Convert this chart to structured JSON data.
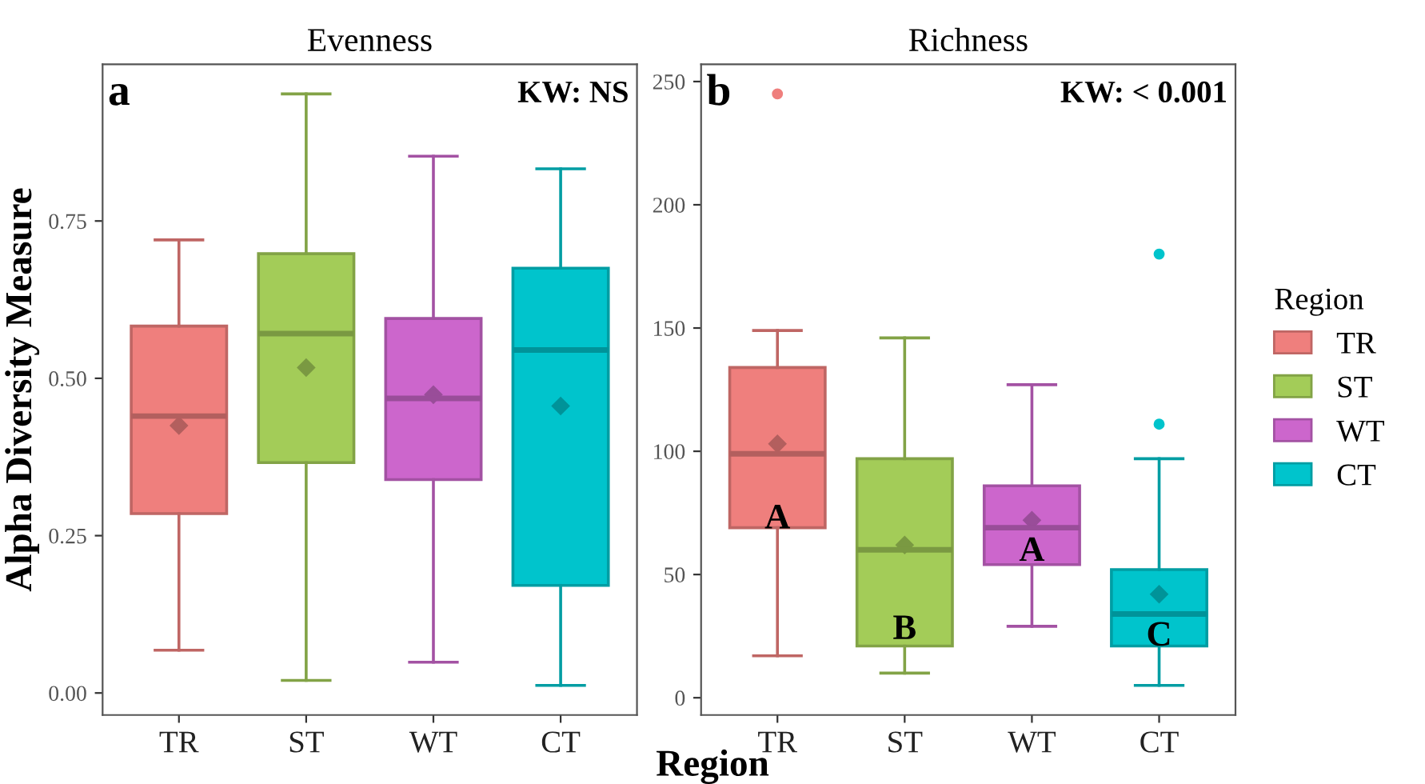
{
  "chart_data": [
    {
      "type": "box",
      "title": "Evenness",
      "ylabel": "Alpha Diversity Measure",
      "xlabel": "Region",
      "categories": [
        "TR",
        "ST",
        "WT",
        "CT"
      ],
      "series": [
        {
          "color": "#ef7f7d",
          "boxes": [
            {
              "low": 0.068,
              "q1": 0.285,
              "median": 0.44,
              "q3": 0.583,
              "high": 0.72,
              "mean": 0.425
            },
            null,
            null,
            null
          ]
        },
        {
          "color": "#a3cc58",
          "boxes": [
            null,
            {
              "low": 0.02,
              "q1": 0.366,
              "median": 0.571,
              "q3": 0.698,
              "high": 0.952,
              "mean": 0.517
            },
            null,
            null
          ]
        },
        {
          "color": "#cc66cc",
          "boxes": [
            null,
            null,
            {
              "low": 0.049,
              "q1": 0.339,
              "median": 0.468,
              "q3": 0.595,
              "high": 0.853,
              "mean": 0.474
            },
            null
          ]
        },
        {
          "color": "#00c4cc",
          "boxes": [
            null,
            null,
            null,
            {
              "low": 0.012,
              "q1": 0.171,
              "median": 0.545,
              "q3": 0.675,
              "high": 0.833,
              "mean": 0.456
            }
          ]
        }
      ],
      "ylim": [
        -0.035,
        0.999
      ],
      "yticks": [
        {
          "value": 0,
          "label": "0.00"
        },
        {
          "value": 0.25,
          "label": "0.25"
        },
        {
          "value": 0.5,
          "label": "0.50"
        },
        {
          "value": 0.75,
          "label": "0.75"
        }
      ],
      "annotations": [
        "a",
        "KW: NS"
      ],
      "grid": false
    },
    {
      "type": "box",
      "title": "Richness",
      "legend_title": "Region",
      "categories": [
        "TR",
        "ST",
        "WT",
        "CT"
      ],
      "series": [
        {
          "name": "TR",
          "color": "#ef7f7d",
          "boxes": [
            {
              "low": 17,
              "q1": 69,
              "median": 99,
              "q3": 134,
              "high": 149,
              "mean": 103,
              "outliers": [
                245
              ]
            },
            null,
            null,
            null
          ]
        },
        {
          "name": "ST",
          "color": "#a3cc58",
          "boxes": [
            null,
            {
              "low": 10,
              "q1": 21,
              "median": 60,
              "q3": 97,
              "high": 146,
              "mean": 62
            },
            null,
            null
          ]
        },
        {
          "name": "WT",
          "color": "#cc66cc",
          "boxes": [
            null,
            null,
            {
              "low": 29,
              "q1": 54,
              "median": 69,
              "q3": 86,
              "high": 127,
              "mean": 72
            },
            null
          ]
        },
        {
          "name": "CT",
          "color": "#00c4cc",
          "boxes": [
            null,
            null,
            null,
            {
              "low": 5,
              "q1": 21,
              "median": 34,
              "q3": 52,
              "high": 97,
              "mean": 42,
              "outliers": [
                111,
                180
              ]
            }
          ]
        }
      ],
      "ylim": [
        -7,
        257
      ],
      "yticks": [
        0,
        50,
        100,
        150,
        200,
        250
      ],
      "annotations": [
        "b",
        "KW: < 0.001",
        "A",
        "B",
        "A",
        "C"
      ],
      "grid": false,
      "legend": "right"
    }
  ]
}
